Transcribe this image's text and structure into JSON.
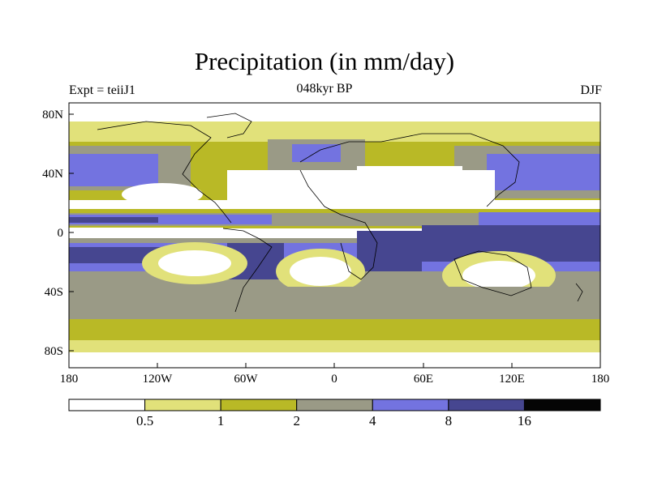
{
  "header": {
    "title": "Precipitation (in mm/day)",
    "left_label": "Expt = teiiJ1",
    "center_label": "048kyr BP",
    "right_label": "DJF"
  },
  "axes": {
    "x_ticks": [
      "180",
      "120W",
      "60W",
      "0",
      "60E",
      "120E",
      "180"
    ],
    "y_ticks": [
      "80N",
      "40N",
      "0",
      "40S",
      "80S"
    ]
  },
  "colorbar": {
    "colors": [
      "#ffffff",
      "#e1e17a",
      "#b9b926",
      "#9a9a86",
      "#7373e0",
      "#464690",
      "#050505"
    ],
    "labels": [
      "0.5",
      "1",
      "2",
      "4",
      "8",
      "16"
    ]
  }
}
